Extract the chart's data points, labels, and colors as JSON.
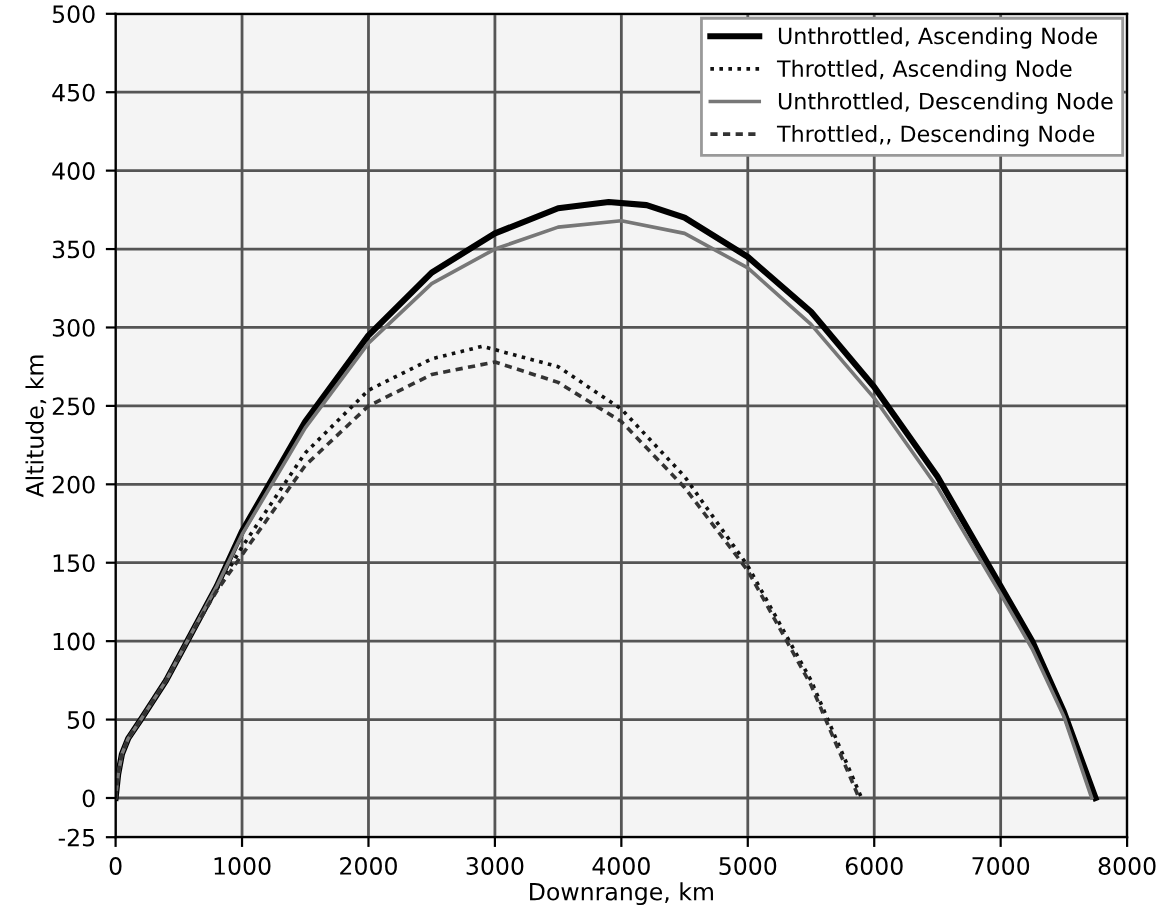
{
  "chart_data": {
    "type": "line",
    "xlabel": "Downrange, km",
    "ylabel": "Altitude, km",
    "xlim": [
      0,
      8000
    ],
    "xticks": [
      0,
      1000,
      2000,
      3000,
      4000,
      5000,
      6000,
      7000,
      8000
    ],
    "ylim": [
      -25,
      500
    ],
    "yticks": [
      -25,
      0,
      50,
      100,
      150,
      200,
      250,
      300,
      350,
      400,
      450,
      500
    ],
    "grid": true,
    "legend": "top right",
    "marker": "none",
    "series": [
      {
        "name": "Unthrottled, Ascending Node",
        "color": "#000000",
        "line_style": "solid",
        "x": [
          0,
          20,
          50,
          100,
          200,
          400,
          600,
          800,
          1000,
          1500,
          2000,
          2500,
          3000,
          3500,
          3900,
          4200,
          4500,
          5000,
          5500,
          6000,
          6500,
          7000,
          7250,
          7500,
          7750
        ],
        "values": [
          0,
          15,
          28,
          38,
          50,
          75,
          105,
          135,
          170,
          240,
          295,
          335,
          360,
          376,
          380,
          378,
          370,
          345,
          310,
          262,
          205,
          135,
          100,
          55,
          0
        ]
      },
      {
        "name": "Throttled, Ascending Node",
        "color": "#111111",
        "line_style": "dotted",
        "x": [
          0,
          20,
          50,
          100,
          200,
          400,
          600,
          800,
          1000,
          1500,
          2000,
          2500,
          2900,
          3500,
          4000,
          4500,
          5000,
          5500,
          5900
        ],
        "values": [
          0,
          15,
          28,
          38,
          50,
          75,
          105,
          133,
          160,
          220,
          260,
          280,
          288,
          275,
          248,
          205,
          148,
          75,
          0
        ]
      },
      {
        "name": "Unthrottled, Descending Node",
        "color": "#777777",
        "line_style": "solid",
        "x": [
          0,
          20,
          50,
          100,
          200,
          400,
          600,
          800,
          1000,
          1500,
          2000,
          2500,
          3000,
          3500,
          4000,
          4500,
          5000,
          5500,
          6000,
          6500,
          7000,
          7250,
          7500,
          7720
        ],
        "values": [
          0,
          15,
          28,
          38,
          50,
          75,
          105,
          135,
          168,
          236,
          290,
          328,
          350,
          364,
          368,
          360,
          338,
          302,
          255,
          198,
          130,
          95,
          52,
          0
        ]
      },
      {
        "name": "Throttled,, Descending Node",
        "color": "#333333",
        "line_style": "dashed",
        "x": [
          0,
          20,
          50,
          100,
          200,
          400,
          600,
          800,
          1000,
          1500,
          2000,
          2500,
          3000,
          3500,
          4000,
          4500,
          5000,
          5500,
          5880
        ],
        "values": [
          0,
          15,
          28,
          38,
          50,
          75,
          105,
          132,
          155,
          212,
          250,
          270,
          278,
          265,
          240,
          198,
          145,
          72,
          0
        ]
      }
    ]
  }
}
